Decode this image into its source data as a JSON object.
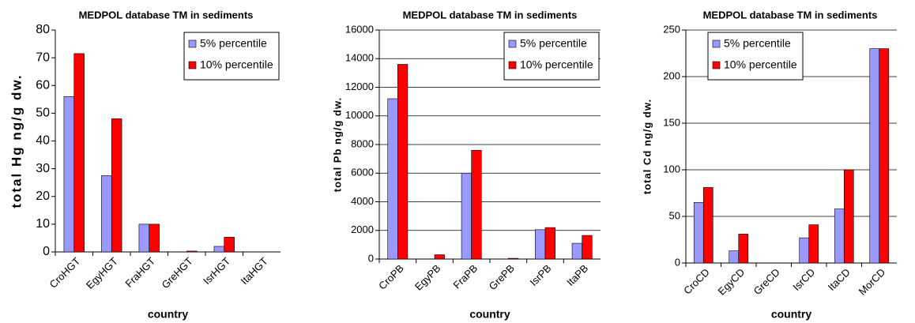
{
  "chart_data": [
    {
      "type": "bar",
      "title": "MEDPOL database TM in sediments",
      "x_label": "country",
      "y_label": "total Hg ng/g dw.",
      "categories": [
        "CroHGT",
        "EgyHGT",
        "FraHGT",
        "GreHGT",
        "IsrHGT",
        "ItaHGT"
      ],
      "series": [
        {
          "name": "5% percentile",
          "color": "#9999ff",
          "values": [
            56,
            27.5,
            10,
            0,
            2,
            0
          ]
        },
        {
          "name": "10% percentile",
          "color": "#ff0000",
          "values": [
            71.5,
            48,
            10,
            0.3,
            5.3,
            0
          ]
        }
      ],
      "ylim": [
        0,
        80
      ],
      "yticks": [
        0,
        10,
        20,
        30,
        40,
        50,
        60,
        70,
        80
      ],
      "grid": false,
      "legend": "upper right"
    },
    {
      "type": "bar",
      "title": "MEDPOL database TM in sediments",
      "x_label": "country",
      "y_label": "total Pb ng/g dw.",
      "categories": [
        "CroPB",
        "EgyPB",
        "FraPB",
        "GrePB",
        "IsrPB",
        "ItaPB"
      ],
      "series": [
        {
          "name": "5% percentile",
          "color": "#9999ff",
          "values": [
            11200,
            0,
            6000,
            0,
            2050,
            1100
          ]
        },
        {
          "name": "10% percentile",
          "color": "#ff0000",
          "values": [
            13600,
            300,
            7600,
            50,
            2200,
            1650
          ]
        }
      ],
      "ylim": [
        0,
        16000
      ],
      "yticks": [
        0,
        2000,
        4000,
        6000,
        8000,
        10000,
        12000,
        14000,
        16000
      ],
      "grid": true,
      "legend": "upper right"
    },
    {
      "type": "bar",
      "title": "MEDPOL database TM in sediments",
      "x_label": "country",
      "y_label": "total Cd ng/g dw.",
      "categories": [
        "CroCD",
        "EgyCD",
        "GreCD",
        "IsrCD",
        "ItaCD",
        "MorCD"
      ],
      "series": [
        {
          "name": "5% percentile",
          "color": "#9999ff",
          "values": [
            65,
            13,
            0,
            27,
            58,
            230
          ]
        },
        {
          "name": "10% percentile",
          "color": "#ff0000",
          "values": [
            81,
            31,
            0,
            41,
            100,
            230
          ]
        }
      ],
      "ylim": [
        0,
        250
      ],
      "yticks": [
        0,
        50,
        100,
        150,
        200,
        250
      ],
      "grid": true,
      "legend": "upper left"
    }
  ]
}
